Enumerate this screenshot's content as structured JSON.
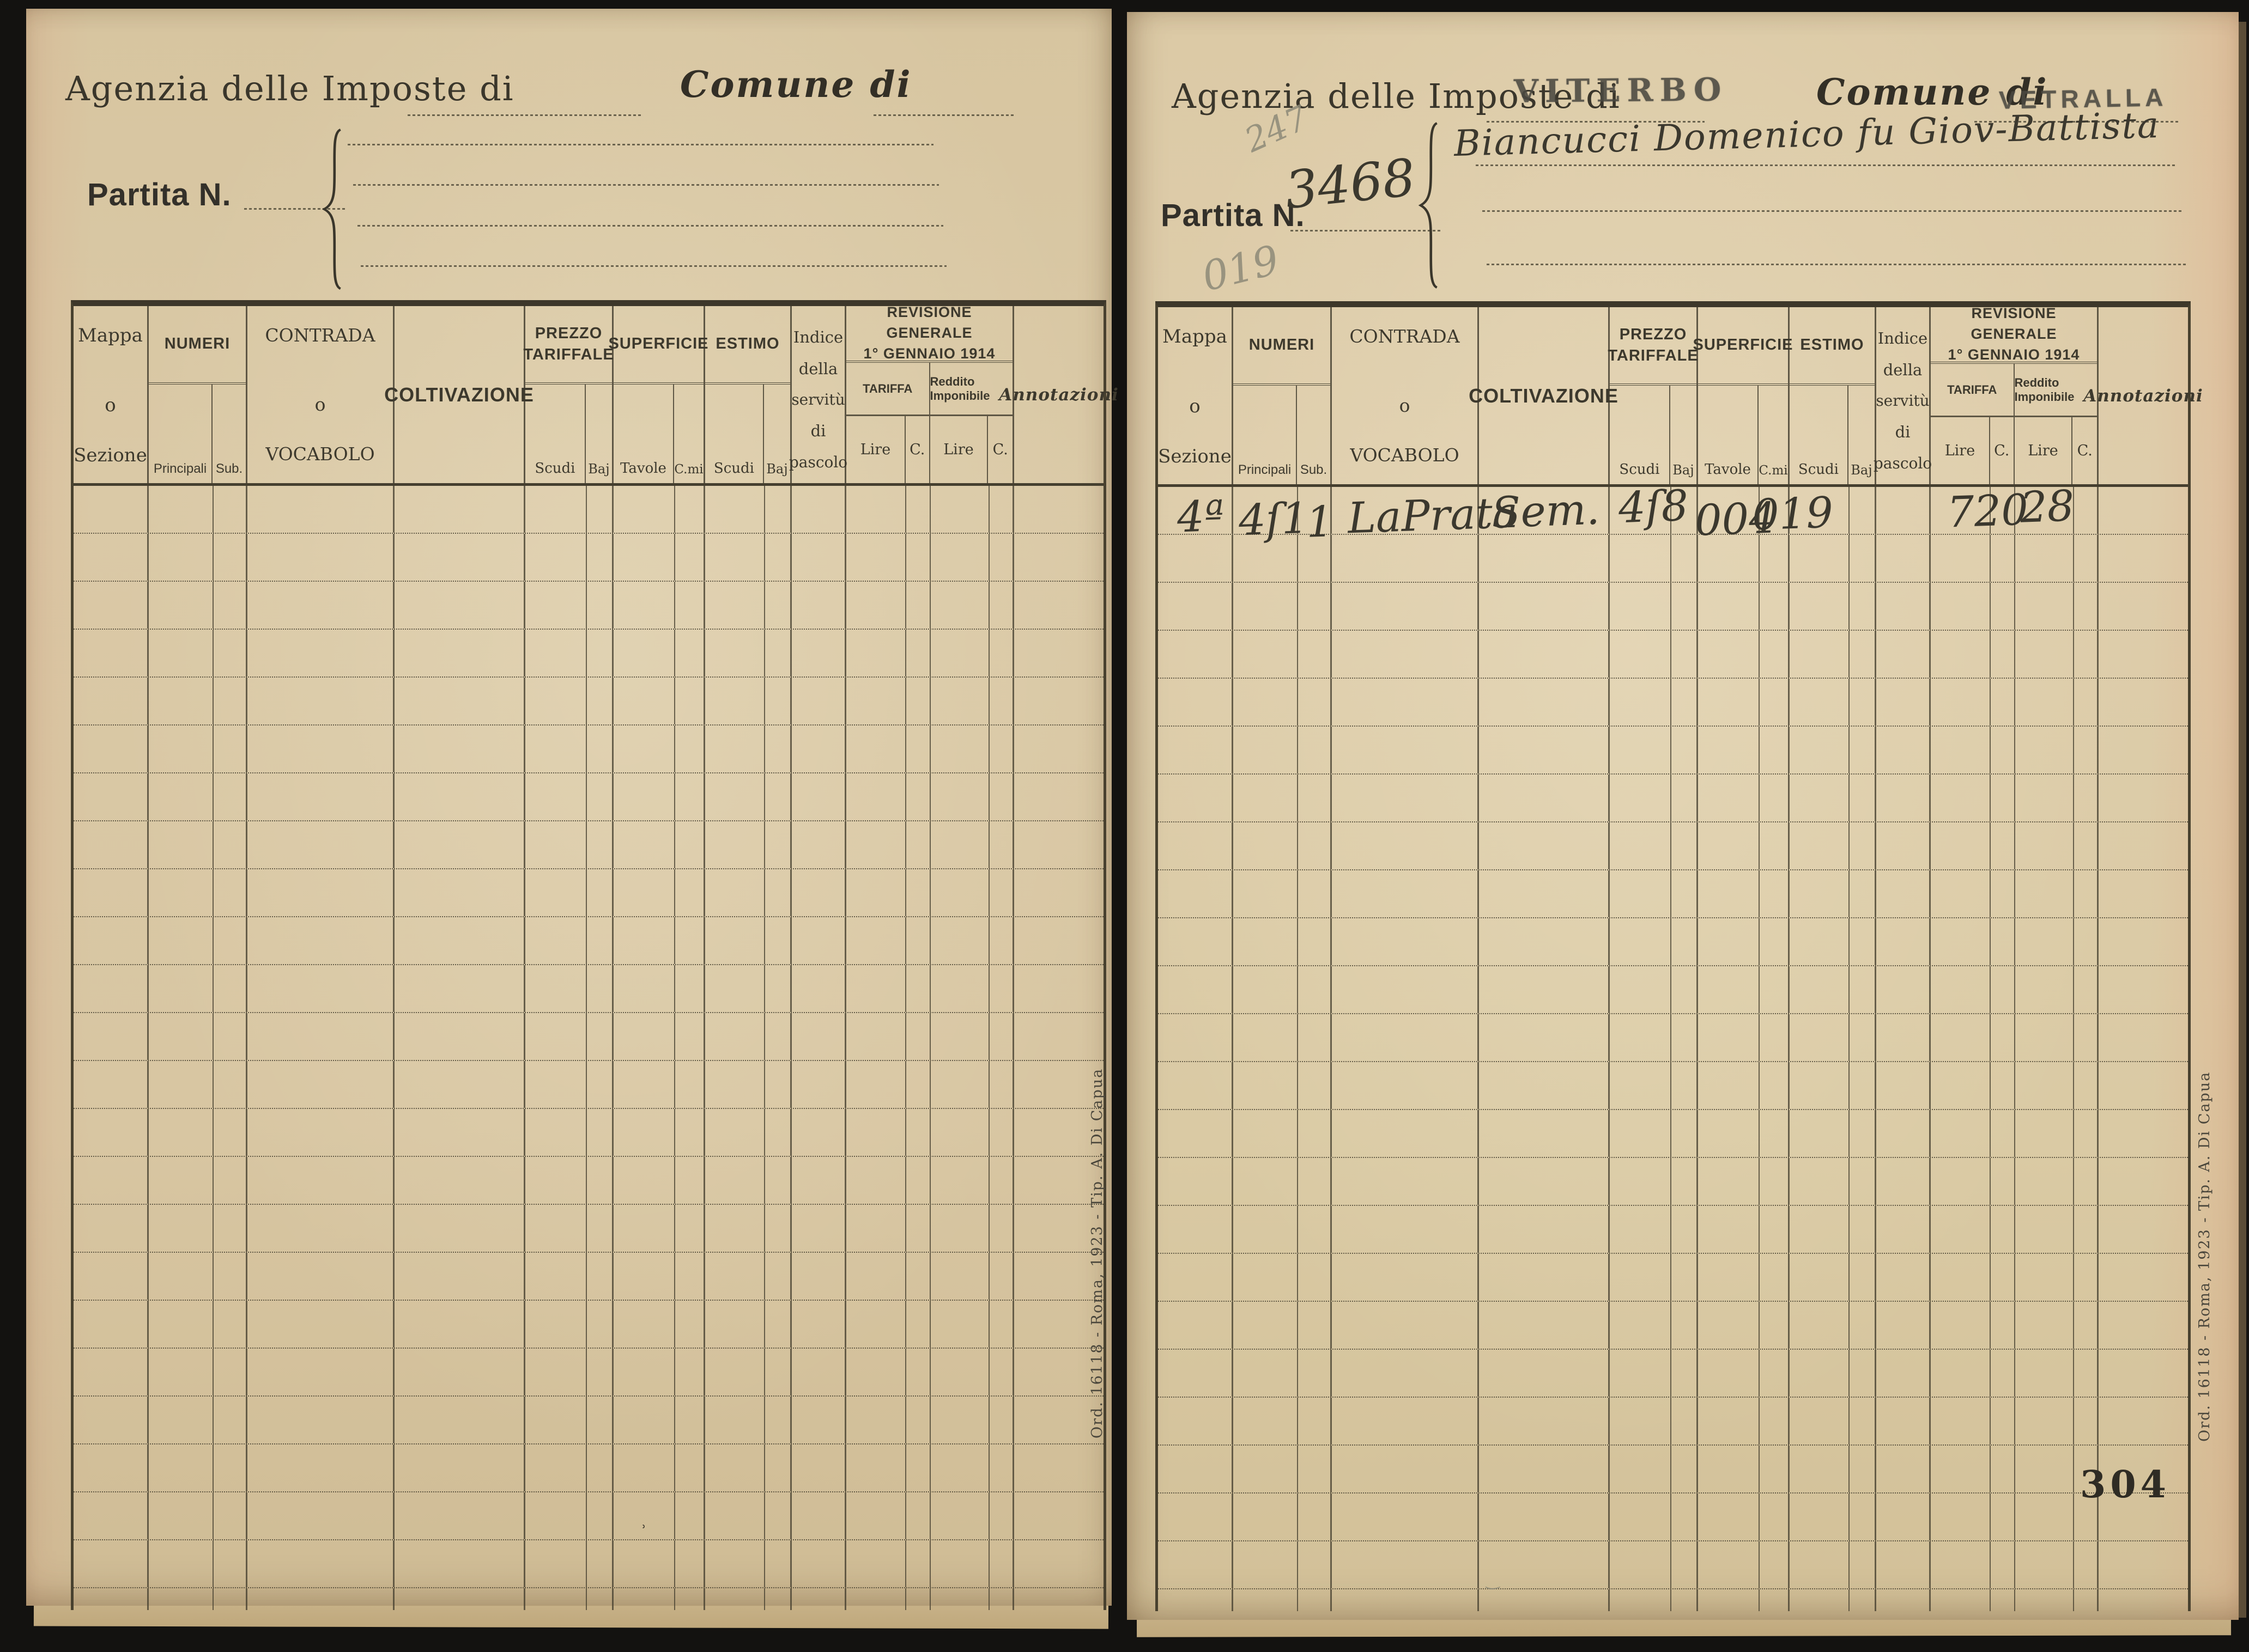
{
  "labels": {
    "agenzia": "Agenzia delle Imposte di",
    "comune": "Comune di",
    "partita": "Partita N."
  },
  "imprint": "Ord. 16118 - Roma, 1923 - Tip. A. Di Capua",
  "right_page": {
    "agenzia_value": "VITERBO",
    "comune_value": "VETRALLA",
    "partita_value": "3468",
    "owner_name": "Biancucci Domenico fu Giov-Battista",
    "pencil_top": "247",
    "pencil_side": "019",
    "page_number": "304",
    "entry": {
      "mappa": "4ª",
      "principali": "4ſ1",
      "sub": "1",
      "contrada": "LaPrata",
      "coltivazione": "Sem.",
      "prezzo_scudi": "4ſ8",
      "superficie_tavole": "004",
      "superficie_cmi": "019",
      "tariffa_lire": "720",
      "reddito_lire": "28"
    }
  },
  "table_header": {
    "mappa": [
      "Mappa",
      "o",
      "Sezione"
    ],
    "numeri": "NUMERI",
    "principali": "Principali",
    "sub": "Sub.",
    "contrada": [
      "CONTRADA",
      "o",
      "VOCABOLO"
    ],
    "coltivazione": "COLTIVAZIONE",
    "prezzo": [
      "PREZZO",
      "TARIFFALE"
    ],
    "superficie": "SUPERFICIE",
    "estimo": "ESTIMO",
    "scudi": "Scudi",
    "baj": "Baj",
    "tavole": "Tavole",
    "cmi": "C.mi",
    "indice": [
      "Indice",
      "della",
      "servitù",
      "di",
      "pascolo"
    ],
    "revisione": [
      "REVISIONE GENERALE",
      "1° GENNAIO 1914"
    ],
    "tariffa": "TARIFFA",
    "reddito": "Reddito Imponibile",
    "lire": "Lire",
    "c": "C.",
    "lire2": "Lire",
    "c2": "C.",
    "annotazioni": "Annotazioni"
  },
  "colors": {
    "paper_left": "#d8c6a2",
    "paper_right": "#dccbaa",
    "ink": "#3a362b",
    "stamp": "#4b4941",
    "pencil": "#8d8a78",
    "grid_line": "#48412f",
    "background": "#131210"
  }
}
